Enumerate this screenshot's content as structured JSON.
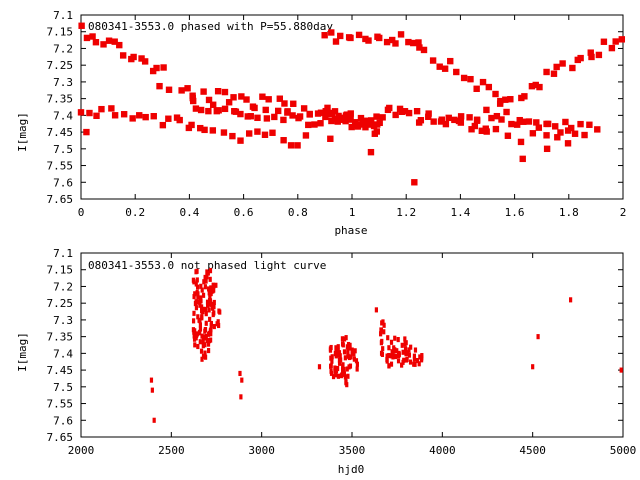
{
  "chart_data": [
    {
      "type": "scatter",
      "title": "080341-3553.0 phased with P=55.880day",
      "xlabel": "phase",
      "ylabel": "I[mag]",
      "xlim": [
        0,
        2
      ],
      "ylim": [
        7.1,
        7.65
      ],
      "y_inverted": true,
      "grid": false,
      "marker_color": "#ee0000",
      "x_ticks": [
        "0",
        "0.2",
        "0.4",
        "0.6",
        "0.8",
        "1",
        "1.2",
        "1.4",
        "1.6",
        "1.8",
        "2"
      ],
      "y_ticks": [
        "7.1",
        "7.15",
        "7.2",
        "7.25",
        "7.3",
        "7.35",
        "7.4",
        "7.45",
        "7.5",
        "7.55",
        "7.6",
        "7.65"
      ],
      "trend_segments": [
        {
          "x0": 0.0,
          "x1": 0.3,
          "y0": 7.14,
          "y1": 7.27,
          "n": 16
        },
        {
          "x0": 0.3,
          "x1": 0.9,
          "y0": 7.32,
          "y1": 7.39,
          "n": 22
        },
        {
          "x0": 0.9,
          "x1": 1.25,
          "y0": 7.16,
          "y1": 7.17,
          "n": 18
        },
        {
          "x0": 1.25,
          "x1": 1.55,
          "y0": 7.2,
          "y1": 7.35,
          "n": 14
        },
        {
          "x0": 1.55,
          "x1": 2.0,
          "y0": 7.37,
          "y1": 7.16,
          "n": 22
        },
        {
          "x0": 0.0,
          "x1": 0.4,
          "y0": 7.39,
          "y1": 7.42,
          "n": 16
        },
        {
          "x0": 0.4,
          "x1": 0.9,
          "y0": 7.36,
          "y1": 7.42,
          "n": 32
        },
        {
          "x0": 0.9,
          "x1": 1.1,
          "y0": 7.39,
          "y1": 7.44,
          "n": 36
        },
        {
          "x0": 1.1,
          "x1": 1.5,
          "y0": 7.39,
          "y1": 7.43,
          "n": 28
        },
        {
          "x0": 1.5,
          "x1": 1.9,
          "y0": 7.4,
          "y1": 7.45,
          "n": 24
        },
        {
          "x0": 0.4,
          "x1": 0.8,
          "y0": 7.44,
          "y1": 7.48,
          "n": 14
        },
        {
          "x0": 1.4,
          "x1": 1.8,
          "y0": 7.44,
          "y1": 7.49,
          "n": 10
        }
      ],
      "outliers": [
        {
          "x": 1.23,
          "y": 7.6
        },
        {
          "x": 1.63,
          "y": 7.53
        },
        {
          "x": 1.07,
          "y": 7.51
        },
        {
          "x": 1.72,
          "y": 7.5
        },
        {
          "x": 0.02,
          "y": 7.45
        },
        {
          "x": 0.83,
          "y": 7.46
        },
        {
          "x": 0.92,
          "y": 7.47
        }
      ]
    },
    {
      "type": "scatter",
      "title": "080341-3553.0 not phased light curve",
      "xlabel": "hjd0",
      "ylabel": "I[mag]",
      "xlim": [
        2000,
        5000
      ],
      "ylim": [
        7.1,
        7.65
      ],
      "y_inverted": true,
      "grid": false,
      "marker_color": "#ee0000",
      "x_ticks": [
        "2000",
        "2500",
        "3000",
        "3500",
        "4000",
        "4500",
        "5000"
      ],
      "y_ticks": [
        "7.1",
        "7.15",
        "7.2",
        "7.25",
        "7.3",
        "7.35",
        "7.4",
        "7.45",
        "7.5",
        "7.55",
        "7.6",
        "7.65"
      ],
      "clusters": [
        {
          "x0": 2620,
          "x1": 2650,
          "y0": 7.15,
          "y1": 7.38,
          "n": 30
        },
        {
          "x0": 2650,
          "x1": 2690,
          "y0": 7.17,
          "y1": 7.42,
          "n": 40
        },
        {
          "x0": 2690,
          "x1": 2720,
          "y0": 7.15,
          "y1": 7.4,
          "n": 34
        },
        {
          "x0": 2720,
          "x1": 2750,
          "y0": 7.17,
          "y1": 7.33,
          "n": 18
        },
        {
          "x0": 2750,
          "x1": 2770,
          "y0": 7.27,
          "y1": 7.33,
          "n": 5
        },
        {
          "x0": 3380,
          "x1": 3440,
          "y0": 7.38,
          "y1": 7.48,
          "n": 30
        },
        {
          "x0": 3440,
          "x1": 3480,
          "y0": 7.35,
          "y1": 7.5,
          "n": 26
        },
        {
          "x0": 3480,
          "x1": 3530,
          "y0": 7.37,
          "y1": 7.45,
          "n": 16
        },
        {
          "x0": 3640,
          "x1": 3680,
          "y0": 7.3,
          "y1": 7.41,
          "n": 12
        },
        {
          "x0": 3690,
          "x1": 3760,
          "y0": 7.35,
          "y1": 7.44,
          "n": 24
        },
        {
          "x0": 3760,
          "x1": 3830,
          "y0": 7.35,
          "y1": 7.44,
          "n": 20
        },
        {
          "x0": 3840,
          "x1": 3890,
          "y0": 7.39,
          "y1": 7.44,
          "n": 12
        }
      ],
      "points": [
        {
          "x": 2390,
          "y": 7.48
        },
        {
          "x": 2395,
          "y": 7.51
        },
        {
          "x": 2405,
          "y": 7.6
        },
        {
          "x": 2880,
          "y": 7.46
        },
        {
          "x": 2890,
          "y": 7.48
        },
        {
          "x": 2885,
          "y": 7.53
        },
        {
          "x": 3320,
          "y": 7.44
        },
        {
          "x": 3635,
          "y": 7.27
        },
        {
          "x": 4500,
          "y": 7.44
        },
        {
          "x": 4530,
          "y": 7.35
        },
        {
          "x": 4710,
          "y": 7.24
        },
        {
          "x": 4990,
          "y": 7.45
        }
      ]
    }
  ]
}
